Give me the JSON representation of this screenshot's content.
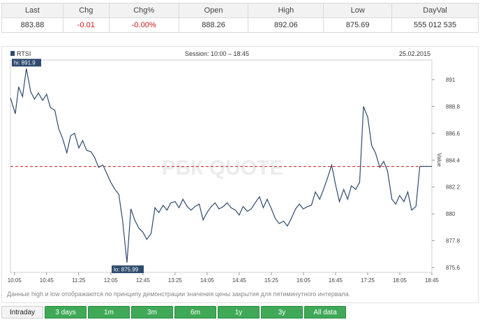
{
  "quote": {
    "headers": [
      "Last",
      "Chg",
      "Chg%",
      "Open",
      "High",
      "Low",
      "DayVal"
    ],
    "values": [
      "883.88",
      "-0.01",
      "-0.00%",
      "888.26",
      "892.06",
      "875.69",
      "555 012 535"
    ],
    "negative_color": "#d01818"
  },
  "chart_header": {
    "legend_label": "RTSI",
    "session": "Session: 10:00 – 18:45",
    "date": "25.02.2015"
  },
  "chart_data": {
    "type": "line",
    "ylabel": "Value",
    "xlabel": "",
    "ylim": [
      875.2,
      892.6
    ],
    "x_ticks": [
      "10:05",
      "10:45",
      "11:25",
      "12:05",
      "12:45",
      "13:25",
      "14:05",
      "14:45",
      "15:25",
      "16:05",
      "16:45",
      "17:25",
      "18:05",
      "18:45"
    ],
    "y_ticks": [
      875.6,
      877.8,
      880,
      882.2,
      884.4,
      886.6,
      888.8,
      891
    ],
    "hi_label": "hi: 891.9",
    "lo_label": "lo: 875.99",
    "hi_value": 891.9,
    "lo_value": 875.99,
    "reference_line": 883.88,
    "series": [
      {
        "color": "#2e4a6e",
        "x": [
          10.0,
          10.1,
          10.17,
          10.25,
          10.33,
          10.42,
          10.5,
          10.58,
          10.67,
          10.75,
          10.83,
          10.92,
          11.0,
          11.08,
          11.17,
          11.25,
          11.33,
          11.42,
          11.5,
          11.58,
          11.67,
          11.75,
          11.83,
          11.92,
          12.0,
          12.08,
          12.17,
          12.25,
          12.33,
          12.42,
          12.5,
          12.58,
          12.67,
          12.75,
          12.83,
          12.92,
          13.0,
          13.08,
          13.17,
          13.25,
          13.33,
          13.42,
          13.5,
          13.58,
          13.67,
          13.75,
          13.83,
          13.92,
          14.0,
          14.08,
          14.17,
          14.25,
          14.33,
          14.42,
          14.5,
          14.58,
          14.67,
          14.75,
          14.83,
          14.92,
          15.0,
          15.08,
          15.17,
          15.25,
          15.33,
          15.42,
          15.5,
          15.58,
          15.67,
          15.75,
          15.83,
          15.92,
          16.0,
          16.08,
          16.17,
          16.25,
          16.33,
          16.42,
          16.5,
          16.58,
          16.67,
          16.75,
          16.83,
          16.92,
          17.0,
          17.08,
          17.17,
          17.25,
          17.33,
          17.42,
          17.5,
          17.58,
          17.67,
          17.75,
          17.83,
          17.92,
          18.0,
          18.08,
          18.17,
          18.25,
          18.33,
          18.42,
          18.5,
          18.58,
          18.67,
          18.75
        ],
        "values": [
          889.5,
          888.2,
          890.4,
          889.6,
          891.9,
          890.0,
          889.4,
          889.9,
          889.3,
          889.8,
          888.7,
          888.5,
          887.0,
          886.2,
          885.0,
          886.4,
          886.6,
          885.4,
          886.0,
          885.2,
          885.1,
          884.6,
          883.8,
          884.0,
          883.3,
          882.6,
          882.0,
          881.6,
          879.4,
          876.0,
          880.4,
          879.5,
          878.8,
          878.5,
          877.9,
          878.4,
          880.5,
          880.1,
          880.7,
          880.3,
          880.9,
          881.0,
          880.5,
          881.2,
          880.6,
          880.3,
          880.6,
          880.8,
          879.5,
          880.1,
          880.6,
          880.9,
          880.4,
          880.6,
          880.9,
          880.5,
          880.3,
          879.9,
          880.6,
          880.2,
          880.4,
          880.9,
          881.4,
          880.5,
          881.2,
          880.4,
          879.6,
          879.2,
          879.4,
          879.0,
          879.6,
          880.4,
          880.8,
          880.4,
          880.6,
          880.7,
          881.8,
          881.2,
          882.0,
          882.9,
          884.0,
          882.4,
          881.0,
          882.0,
          881.2,
          882.3,
          882.0,
          882.6,
          888.8,
          887.9,
          885.6,
          885.0,
          883.8,
          884.3,
          883.5,
          881.2,
          880.8,
          881.5,
          881.0,
          881.8,
          880.3,
          880.6,
          883.88,
          883.88,
          883.88,
          883.88
        ]
      }
    ]
  },
  "watermark": "РБК QUOTE",
  "footnote": "Данные high и low отображаются по принципу демонстрации значения цены закрытия для пятиминутного интервала.",
  "tabs": [
    "Intraday",
    "3 days",
    "1m",
    "3m",
    "6m",
    "1y",
    "3y",
    "All data"
  ]
}
